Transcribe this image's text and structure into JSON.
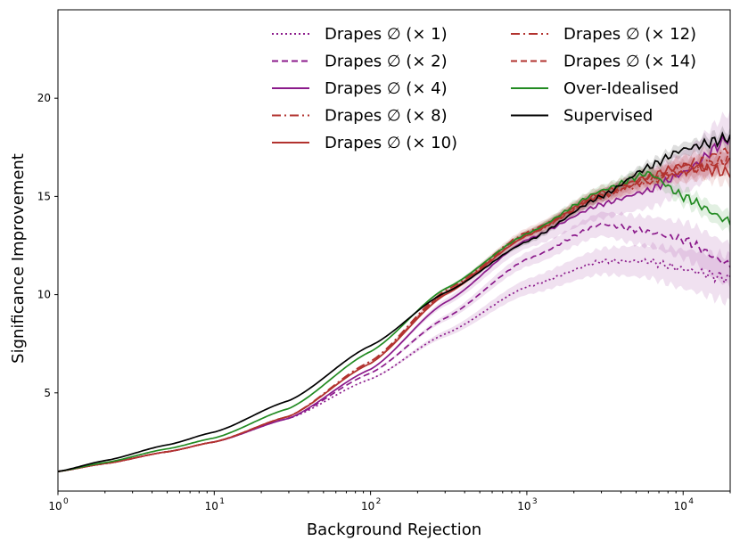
{
  "chart_data": {
    "type": "line",
    "title": "",
    "xlabel": "Background Rejection",
    "ylabel": "Significance Improvement",
    "xscale": "log",
    "xlim": [
      1,
      20000
    ],
    "ylim": [
      0,
      24.5
    ],
    "yticks": [
      5,
      10,
      15,
      20
    ],
    "ytick_labels": [
      "5",
      "10",
      "15",
      "20"
    ],
    "xticks": [
      1,
      10,
      100,
      1000,
      10000
    ],
    "xtick_labels": [
      {
        "base": "10",
        "exp": "0"
      },
      {
        "base": "10",
        "exp": "1"
      },
      {
        "base": "10",
        "exp": "2"
      },
      {
        "base": "10",
        "exp": "3"
      },
      {
        "base": "10",
        "exp": "4"
      }
    ],
    "legend_position": "top-right, two columns",
    "grid": false,
    "series": [
      {
        "name": "Drapes ∅ (× 1)",
        "color": "#8b1a8b",
        "dash": "dotted",
        "band": 1.2,
        "points": [
          [
            1,
            1.0
          ],
          [
            2,
            1.4
          ],
          [
            5,
            2.0
          ],
          [
            10,
            2.5
          ],
          [
            30,
            3.7
          ],
          [
            100,
            5.7
          ],
          [
            300,
            8.0
          ],
          [
            1000,
            10.4
          ],
          [
            3000,
            11.7
          ],
          [
            6000,
            11.7
          ],
          [
            10000,
            11.3
          ],
          [
            20000,
            10.8
          ]
        ]
      },
      {
        "name": "Drapes ∅ (× 2)",
        "color": "#8b1a8b",
        "dash": "dashed",
        "band": 1.1,
        "points": [
          [
            1,
            1.0
          ],
          [
            2,
            1.4
          ],
          [
            5,
            2.0
          ],
          [
            10,
            2.5
          ],
          [
            30,
            3.7
          ],
          [
            100,
            6.0
          ],
          [
            300,
            8.8
          ],
          [
            1000,
            11.8
          ],
          [
            3000,
            13.6
          ],
          [
            6000,
            13.2
          ],
          [
            10000,
            12.8
          ],
          [
            20000,
            11.5
          ]
        ]
      },
      {
        "name": "Drapes ∅ (× 4)",
        "color": "#8b1a8b",
        "dash": "solid",
        "band": 1.3,
        "points": [
          [
            1,
            1.0
          ],
          [
            2,
            1.4
          ],
          [
            5,
            2.0
          ],
          [
            10,
            2.5
          ],
          [
            30,
            3.7
          ],
          [
            100,
            6.2
          ],
          [
            300,
            9.6
          ],
          [
            1000,
            12.8
          ],
          [
            3000,
            14.6
          ],
          [
            6000,
            15.3
          ],
          [
            10000,
            16.2
          ],
          [
            20000,
            18.0
          ]
        ]
      },
      {
        "name": "Drapes ∅ (× 8)",
        "color": "#b2322e",
        "dash": "dashdot",
        "band": 0.6,
        "points": [
          [
            1,
            1.0
          ],
          [
            2,
            1.4
          ],
          [
            5,
            2.0
          ],
          [
            10,
            2.5
          ],
          [
            30,
            3.8
          ],
          [
            100,
            6.6
          ],
          [
            300,
            10.1
          ],
          [
            1000,
            13.1
          ],
          [
            3000,
            15.0
          ],
          [
            6000,
            16.0
          ],
          [
            10000,
            16.3
          ],
          [
            20000,
            16.8
          ]
        ]
      },
      {
        "name": "Drapes ∅ (× 10)",
        "color": "#b2322e",
        "dash": "solid",
        "band": 0.6,
        "points": [
          [
            1,
            1.0
          ],
          [
            2,
            1.4
          ],
          [
            5,
            2.0
          ],
          [
            10,
            2.5
          ],
          [
            30,
            3.8
          ],
          [
            100,
            6.5
          ],
          [
            300,
            10.0
          ],
          [
            1000,
            13.0
          ],
          [
            3000,
            15.2
          ],
          [
            6000,
            16.0
          ],
          [
            10000,
            16.6
          ],
          [
            20000,
            16.2
          ]
        ]
      },
      {
        "name": "Drapes ∅ (× 12)",
        "color": "#b2322e",
        "dash": "dashdot",
        "band": 0.6,
        "points": [
          [
            1,
            1.0
          ],
          [
            2,
            1.4
          ],
          [
            5,
            2.0
          ],
          [
            10,
            2.5
          ],
          [
            30,
            3.8
          ],
          [
            100,
            6.6
          ],
          [
            300,
            10.2
          ],
          [
            1000,
            13.2
          ],
          [
            3000,
            15.1
          ],
          [
            6000,
            15.7
          ],
          [
            10000,
            16.5
          ],
          [
            20000,
            17.4
          ]
        ]
      },
      {
        "name": "Drapes ∅ (× 14)",
        "color": "#b2322e",
        "dash": "dashed",
        "band": 0.6,
        "points": [
          [
            1,
            1.0
          ],
          [
            2,
            1.4
          ],
          [
            5,
            2.0
          ],
          [
            10,
            2.5
          ],
          [
            30,
            3.8
          ],
          [
            100,
            6.5
          ],
          [
            300,
            10.1
          ],
          [
            1000,
            13.0
          ],
          [
            3000,
            15.0
          ],
          [
            6000,
            15.8
          ],
          [
            10000,
            16.2
          ],
          [
            20000,
            16.9
          ]
        ]
      },
      {
        "name": "Over-Idealised",
        "color": "#228b22",
        "dash": "solid",
        "band": 0.5,
        "points": [
          [
            1,
            1.0
          ],
          [
            2,
            1.45
          ],
          [
            5,
            2.15
          ],
          [
            10,
            2.7
          ],
          [
            30,
            4.2
          ],
          [
            100,
            7.1
          ],
          [
            300,
            10.3
          ],
          [
            1000,
            13.1
          ],
          [
            3000,
            15.3
          ],
          [
            6000,
            16.2
          ],
          [
            10000,
            15.0
          ],
          [
            20000,
            13.7
          ]
        ]
      },
      {
        "name": "Supervised",
        "color": "#000000",
        "dash": "solid",
        "band": 0.4,
        "points": [
          [
            1,
            1.0
          ],
          [
            2,
            1.55
          ],
          [
            5,
            2.35
          ],
          [
            10,
            3.0
          ],
          [
            30,
            4.6
          ],
          [
            100,
            7.4
          ],
          [
            300,
            10.1
          ],
          [
            1000,
            12.7
          ],
          [
            3000,
            15.0
          ],
          [
            6000,
            16.5
          ],
          [
            10000,
            17.4
          ],
          [
            20000,
            18.0
          ]
        ]
      }
    ]
  }
}
